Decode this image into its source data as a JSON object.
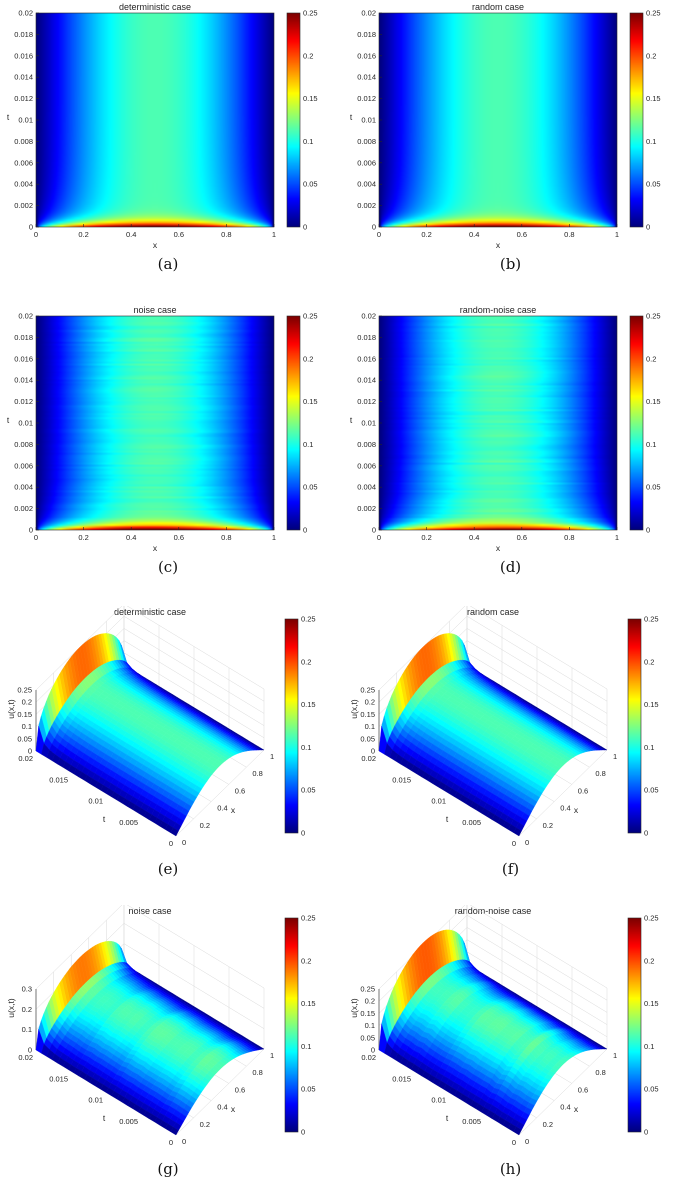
{
  "colormap": "jet",
  "colors": {
    "axis": "#262626",
    "grid": "#d9d9d9",
    "background": "#ffffff"
  },
  "chart_data": [
    {
      "type": "heatmap",
      "panel": "a",
      "title": "deterministic case",
      "xlabel": "x",
      "ylabel": "t",
      "xlim": [
        0,
        1
      ],
      "ylim": [
        0,
        0.02
      ],
      "xticks": [
        "0",
        "0.2",
        "0.4",
        "0.6",
        "0.8",
        "1"
      ],
      "yticks": [
        "0",
        "0.002",
        "0.004",
        "0.006",
        "0.008",
        "0.01",
        "0.012",
        "0.014",
        "0.016",
        "0.018",
        "0.02"
      ],
      "clim": [
        0,
        0.25
      ],
      "colorbar_ticks": [
        "0",
        "0.05",
        "0.1",
        "0.15",
        "0.2",
        "0.25"
      ],
      "noise": false
    },
    {
      "type": "heatmap",
      "panel": "b",
      "title": "random case",
      "xlabel": "x",
      "ylabel": "t",
      "xlim": [
        0,
        1
      ],
      "ylim": [
        0,
        0.02
      ],
      "xticks": [
        "0",
        "0.2",
        "0.4",
        "0.6",
        "0.8",
        "1"
      ],
      "yticks": [
        "0",
        "0.002",
        "0.004",
        "0.006",
        "0.008",
        "0.01",
        "0.012",
        "0.014",
        "0.016",
        "0.018",
        "0.02"
      ],
      "clim": [
        0,
        0.25
      ],
      "colorbar_ticks": [
        "0",
        "0.05",
        "0.1",
        "0.15",
        "0.2",
        "0.25"
      ],
      "noise": false
    },
    {
      "type": "heatmap",
      "panel": "c",
      "title": "noise case",
      "xlabel": "x",
      "ylabel": "t",
      "xlim": [
        0,
        1
      ],
      "ylim": [
        0,
        0.02
      ],
      "xticks": [
        "0",
        "0.2",
        "0.4",
        "0.6",
        "0.8",
        "1"
      ],
      "yticks": [
        "0",
        "0.002",
        "0.004",
        "0.006",
        "0.008",
        "0.01",
        "0.012",
        "0.014",
        "0.016",
        "0.018",
        "0.02"
      ],
      "clim": [
        0,
        0.25
      ],
      "colorbar_ticks": [
        "0",
        "0.05",
        "0.1",
        "0.15",
        "0.2",
        "0.25"
      ],
      "noise": true
    },
    {
      "type": "heatmap",
      "panel": "d",
      "title": "random-noise case",
      "xlabel": "x",
      "ylabel": "t",
      "xlim": [
        0,
        1
      ],
      "ylim": [
        0,
        0.02
      ],
      "xticks": [
        "0",
        "0.2",
        "0.4",
        "0.6",
        "0.8",
        "1"
      ],
      "yticks": [
        "0",
        "0.002",
        "0.004",
        "0.006",
        "0.008",
        "0.01",
        "0.012",
        "0.014",
        "0.016",
        "0.018",
        "0.02"
      ],
      "clim": [
        0,
        0.25
      ],
      "colorbar_ticks": [
        "0",
        "0.05",
        "0.1",
        "0.15",
        "0.2",
        "0.25"
      ],
      "noise": true
    },
    {
      "type": "surface",
      "panel": "e",
      "title": "deterministic case",
      "xlabel": "x",
      "ylabel": "t",
      "zlabel": "u(x,t)",
      "xlim": [
        0,
        1
      ],
      "tlim": [
        0,
        0.02
      ],
      "zlim": [
        0,
        0.25
      ],
      "xticks": [
        "0",
        "0.2",
        "0.4",
        "0.6",
        "0.8",
        "1"
      ],
      "tticks": [
        "0",
        "0.005",
        "0.01",
        "0.015",
        "0.02"
      ],
      "zticks": [
        "0",
        "0.05",
        "0.1",
        "0.15",
        "0.2",
        "0.25"
      ],
      "clim": [
        0,
        0.25
      ],
      "colorbar_ticks": [
        "0",
        "0.05",
        "0.1",
        "0.15",
        "0.2",
        "0.25"
      ],
      "noise": false
    },
    {
      "type": "surface",
      "panel": "f",
      "title": "random case",
      "xlabel": "x",
      "ylabel": "t",
      "zlabel": "u(x,t)",
      "xlim": [
        0,
        1
      ],
      "tlim": [
        0,
        0.02
      ],
      "zlim": [
        0,
        0.25
      ],
      "xticks": [
        "0",
        "0.2",
        "0.4",
        "0.6",
        "0.8",
        "1"
      ],
      "tticks": [
        "0",
        "0.005",
        "0.01",
        "0.015",
        "0.02"
      ],
      "zticks": [
        "0",
        "0.05",
        "0.1",
        "0.15",
        "0.2",
        "0.25"
      ],
      "clim": [
        0,
        0.25
      ],
      "colorbar_ticks": [
        "0",
        "0.05",
        "0.1",
        "0.15",
        "0.2",
        "0.25"
      ],
      "noise": false
    },
    {
      "type": "surface",
      "panel": "g",
      "title": "noise case",
      "xlabel": "x",
      "ylabel": "t",
      "zlabel": "u(x,t)",
      "xlim": [
        0,
        1
      ],
      "tlim": [
        0,
        0.02
      ],
      "zlim": [
        0,
        0.3
      ],
      "xticks": [
        "0",
        "0.2",
        "0.4",
        "0.6",
        "0.8",
        "1"
      ],
      "tticks": [
        "0",
        "0.005",
        "0.01",
        "0.015",
        "0.02"
      ],
      "zticks": [
        "0",
        "0.1",
        "0.2",
        "0.3"
      ],
      "clim": [
        0,
        0.25
      ],
      "colorbar_ticks": [
        "0",
        "0.05",
        "0.1",
        "0.15",
        "0.2",
        "0.25"
      ],
      "noise": true
    },
    {
      "type": "surface",
      "panel": "h",
      "title": "random-noise case",
      "xlabel": "x",
      "ylabel": "t",
      "zlabel": "u(x,t)",
      "xlim": [
        0,
        1
      ],
      "tlim": [
        0,
        0.02
      ],
      "zlim": [
        0,
        0.25
      ],
      "xticks": [
        "0",
        "0.2",
        "0.4",
        "0.6",
        "0.8",
        "1"
      ],
      "tticks": [
        "0",
        "0.005",
        "0.01",
        "0.015",
        "0.02"
      ],
      "zticks": [
        "0",
        "0.05",
        "0.1",
        "0.15",
        "0.2",
        "0.25"
      ],
      "clim": [
        0,
        0.25
      ],
      "colorbar_ticks": [
        "0",
        "0.05",
        "0.1",
        "0.15",
        "0.2",
        "0.25"
      ],
      "noise": true
    }
  ],
  "captions": [
    "(a)",
    "(b)",
    "(c)",
    "(d)",
    "(e)",
    "(f)",
    "(g)",
    "(h)"
  ]
}
